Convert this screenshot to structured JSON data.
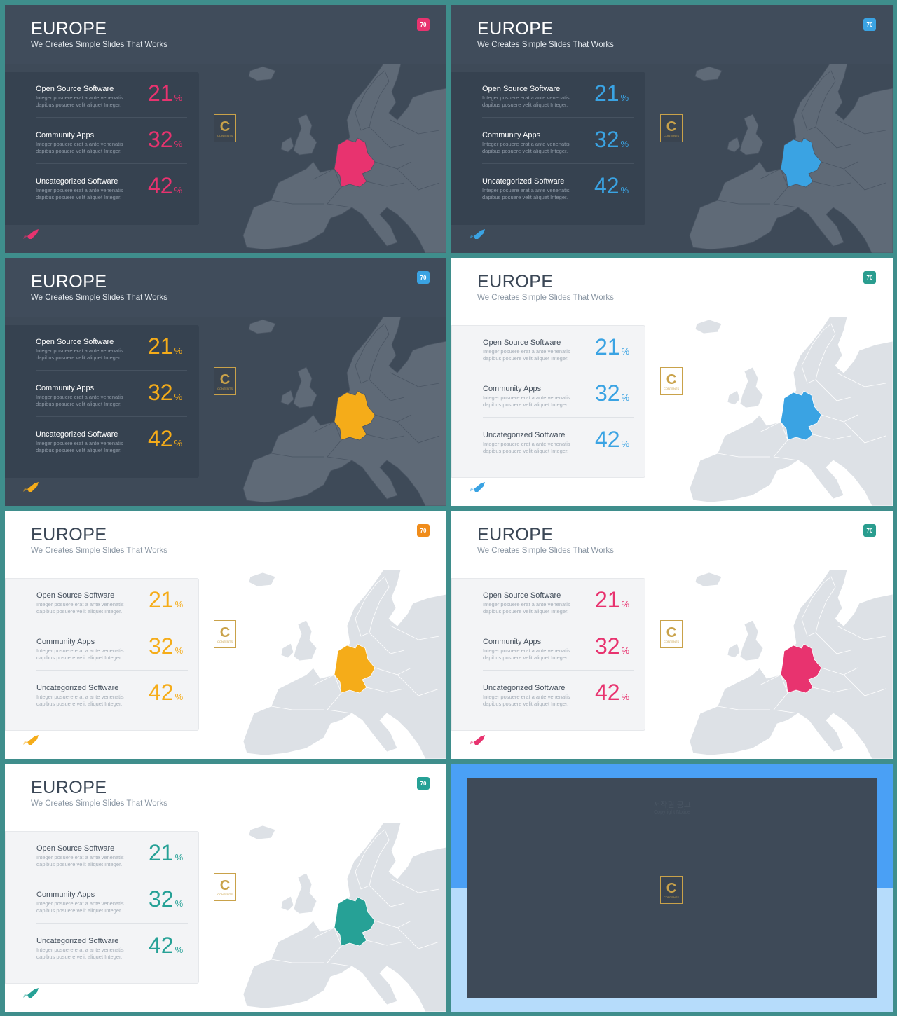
{
  "slide_text": {
    "title": "EUROPE",
    "subtitle": "We Creates Simple Slides That Works",
    "badge": "70",
    "rows": [
      {
        "label": "Open Source Software",
        "desc1": "Integer posuere erat a ante venenatis",
        "desc2": "dapibus posuere velit aliquet Integer.",
        "value": "21",
        "unit": "%"
      },
      {
        "label": "Community Apps",
        "desc1": "Integer posuere erat a ante venenatis",
        "desc2": "dapibus posuere velit aliquet Integer.",
        "value": "32",
        "unit": "%"
      },
      {
        "label": "Uncategorized Software",
        "desc1": "Integer posuere erat a ante venenatis",
        "desc2": "dapibus posuere velit aliquet Integer.",
        "value": "42",
        "unit": "%"
      }
    ],
    "logo_letter": "C",
    "logo_text": "CONTENTS"
  },
  "slides": [
    {
      "theme": "dark",
      "accent": "#e8336f",
      "badge_color": "#e8336f"
    },
    {
      "theme": "dark",
      "accent": "#3aa3e3",
      "badge_color": "#3aa3e3"
    },
    {
      "theme": "dark",
      "accent": "#f5ac19",
      "badge_color": "#3aa3e3"
    },
    {
      "theme": "light",
      "accent": "#3aa3e3",
      "badge_color": "#2a9d8f"
    },
    {
      "theme": "light",
      "accent": "#f5ac19",
      "badge_color": "#f08c1a"
    },
    {
      "theme": "light",
      "accent": "#e8336f",
      "badge_color": "#2a9d8f"
    },
    {
      "theme": "light",
      "accent": "#26a196",
      "badge_color": "#26a196"
    }
  ],
  "notice": {
    "title": "저작권 공고",
    "subtitle": "Copyright Notice"
  }
}
